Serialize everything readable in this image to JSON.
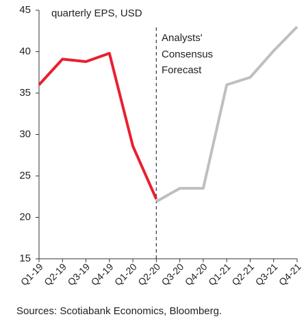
{
  "chart_data": {
    "type": "line",
    "ylabel": "quarterly EPS, USD",
    "annotation": [
      "Analysts'",
      "Consensus",
      "Forecast"
    ],
    "source": "Sources: Scotiabank Economics, Bloomberg.",
    "categories": [
      "Q1-19",
      "Q2-19",
      "Q3-19",
      "Q4-19",
      "Q1-20",
      "Q2-20",
      "Q3-20",
      "Q4-20",
      "Q1-21",
      "Q2-21",
      "Q3-21",
      "Q4-21"
    ],
    "series": [
      {
        "color": "#e8202f",
        "values": [
          36,
          39.1,
          38.8,
          39.8,
          28.6,
          22.2,
          null,
          null,
          null,
          null,
          null,
          null
        ]
      },
      {
        "color": "#bfbfbf",
        "values": [
          null,
          null,
          null,
          null,
          null,
          21.9,
          23.5,
          23.5,
          36,
          36.9,
          40.1,
          43
        ]
      }
    ],
    "ylim": [
      15,
      45
    ],
    "yticks": [
      15,
      20,
      25,
      30,
      35,
      40,
      45
    ]
  }
}
